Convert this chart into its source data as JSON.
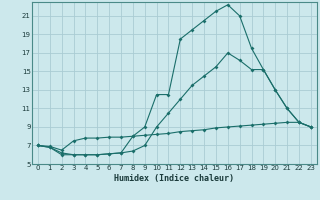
{
  "xlabel": "Humidex (Indice chaleur)",
  "bg_color": "#cce8ec",
  "grid_color": "#aaccd4",
  "line_color": "#1a6e6a",
  "xlim": [
    -0.5,
    23.5
  ],
  "ylim": [
    5,
    22.5
  ],
  "xticks": [
    0,
    1,
    2,
    3,
    4,
    5,
    6,
    7,
    8,
    9,
    10,
    11,
    12,
    13,
    14,
    15,
    16,
    17,
    18,
    19,
    20,
    21,
    22,
    23
  ],
  "yticks": [
    5,
    7,
    9,
    11,
    13,
    15,
    17,
    19,
    21
  ],
  "line1_x": [
    0,
    1,
    2,
    3,
    4,
    5,
    6,
    7,
    8,
    9,
    10,
    11,
    12,
    13,
    14,
    15,
    16,
    17,
    18,
    19,
    20,
    21,
    22,
    23
  ],
  "line1_y": [
    7.0,
    6.8,
    6.2,
    6.0,
    6.0,
    6.0,
    6.1,
    6.2,
    8.0,
    9.0,
    12.5,
    12.5,
    18.5,
    19.5,
    20.5,
    21.5,
    22.2,
    21.0,
    17.5,
    15.2,
    13.0,
    11.0,
    9.5,
    9.0
  ],
  "line2_x": [
    0,
    1,
    2,
    3,
    4,
    5,
    6,
    7,
    8,
    9,
    10,
    11,
    12,
    13,
    14,
    15,
    16,
    17,
    18,
    19,
    20,
    21,
    22,
    23
  ],
  "line2_y": [
    7.0,
    6.8,
    6.0,
    6.0,
    6.0,
    6.0,
    6.1,
    6.2,
    6.4,
    7.0,
    9.0,
    10.5,
    12.0,
    13.5,
    14.5,
    15.5,
    17.0,
    16.2,
    15.2,
    15.2,
    13.0,
    11.0,
    9.5,
    9.0
  ],
  "line3_x": [
    0,
    1,
    2,
    3,
    4,
    5,
    6,
    7,
    8,
    9,
    10,
    11,
    12,
    13,
    14,
    15,
    16,
    17,
    18,
    19,
    20,
    21,
    22,
    23
  ],
  "line3_y": [
    7.0,
    6.9,
    6.5,
    7.5,
    7.8,
    7.8,
    7.9,
    7.9,
    8.0,
    8.1,
    8.2,
    8.3,
    8.5,
    8.6,
    8.7,
    8.9,
    9.0,
    9.1,
    9.2,
    9.3,
    9.4,
    9.5,
    9.5,
    9.0
  ],
  "xlabel_fontsize": 6,
  "tick_fontsize": 5
}
